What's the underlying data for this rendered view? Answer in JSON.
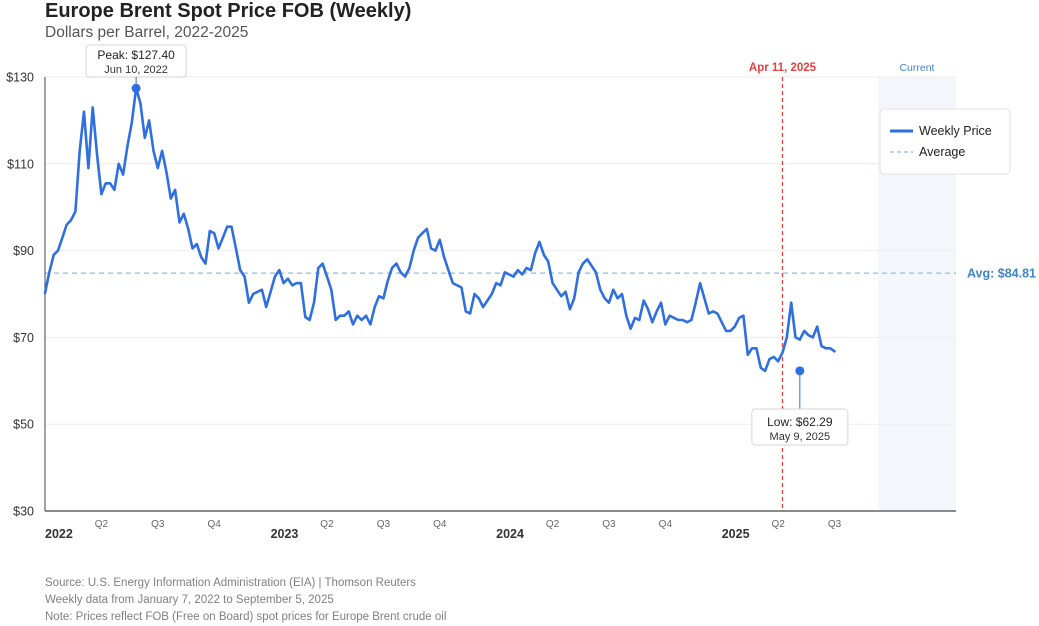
{
  "title": "Europe Brent Spot Price FOB (Weekly)",
  "subtitle": "Dollars per Barrel, 2022-2025",
  "colors": {
    "line": "#2f6fe0",
    "average": "#8fbde0",
    "average_label": "#3f86c8",
    "event": "#e04040",
    "current_band": "#f3f7fc",
    "current_label": "#3f86c8",
    "grid": "#eeeeee",
    "axis": "#444444"
  },
  "chart_data": {
    "type": "line",
    "title": "Europe Brent Spot Price FOB (Weekly)",
    "subtitle": "Dollars per Barrel, 2022-2025",
    "xlabel": "",
    "ylabel": "",
    "y_ticks": [
      "$130",
      "$110",
      "$90",
      "$70",
      "$50",
      "$30"
    ],
    "y_tick_values": [
      130,
      110,
      90,
      70,
      50,
      30
    ],
    "ylim": [
      30,
      130
    ],
    "x_range_weeks": [
      0,
      210
    ],
    "grid": true,
    "x_year_labels": [
      {
        "label": "2022",
        "week": 0
      },
      {
        "label": "2023",
        "week": 52
      },
      {
        "label": "2024",
        "week": 104
      },
      {
        "label": "2025",
        "week": 156
      }
    ],
    "x_quarter_labels": [
      {
        "label": "Q2",
        "week": 13
      },
      {
        "label": "Q3",
        "week": 26
      },
      {
        "label": "Q4",
        "week": 39
      },
      {
        "label": "Q2",
        "week": 65
      },
      {
        "label": "Q3",
        "week": 78
      },
      {
        "label": "Q4",
        "week": 91
      },
      {
        "label": "Q2",
        "week": 117
      },
      {
        "label": "Q3",
        "week": 130
      },
      {
        "label": "Q4",
        "week": 143
      },
      {
        "label": "Q2",
        "week": 169
      },
      {
        "label": "Q3",
        "week": 182
      }
    ],
    "series": [
      {
        "name": "Weekly Price",
        "start_date": "January 7, 2022",
        "interval": "weekly",
        "values": [
          80.2,
          85,
          89,
          90,
          93,
          96,
          97,
          99,
          113,
          122,
          109,
          123,
          112,
          103,
          105.5,
          105.5,
          104,
          110,
          107.5,
          114,
          119.5,
          127.4,
          124,
          116,
          120,
          113,
          109,
          113,
          108,
          102,
          104,
          96.5,
          98.5,
          95,
          90.5,
          91.5,
          88.5,
          87,
          94.5,
          94,
          90.5,
          93,
          95.5,
          95.5,
          90.5,
          85.5,
          84,
          78,
          80,
          80.5,
          81,
          77,
          80.5,
          84,
          85.5,
          82.5,
          83.5,
          82,
          82.5,
          82.5,
          74.7,
          74,
          78,
          86,
          87,
          84,
          81,
          74,
          75,
          75,
          76,
          73,
          75,
          74,
          75,
          73,
          77,
          79.5,
          79,
          83,
          86,
          87,
          85,
          84,
          86,
          90,
          93,
          94,
          95,
          90.5,
          90,
          92.5,
          88.5,
          85.5,
          82.5,
          82,
          81.5,
          76,
          75.5,
          80,
          79,
          77,
          78.5,
          80,
          82.5,
          82,
          85,
          84.5,
          84,
          85.5,
          84.5,
          86,
          85.5,
          89.5,
          92,
          89,
          87.5,
          82.5,
          81,
          79.5,
          80.5,
          76.5,
          79,
          85,
          87,
          88,
          86.5,
          85,
          81,
          79,
          78,
          81,
          79,
          80,
          75,
          72,
          74.5,
          74,
          78.5,
          76.5,
          73.5,
          76,
          78,
          73,
          75,
          74.5,
          74,
          74,
          73.5,
          74,
          78,
          82.5,
          79,
          75.5,
          76,
          75.5,
          73.5,
          71.5,
          71.5,
          72.5,
          74.5,
          75,
          66,
          67.5,
          67.5,
          63,
          62.29,
          65,
          65.5,
          64.5,
          66.5,
          70,
          78,
          70,
          69.5,
          71.5,
          70.5,
          70,
          72.5,
          68,
          67.5,
          67.5,
          66.8
        ]
      }
    ],
    "average": {
      "name": "Average",
      "value": 84.81,
      "label": "Avg: $84.81"
    },
    "peak": {
      "value": 127.4,
      "week": 21,
      "price_label": "Peak: $127.40",
      "date_label": "Jun 10, 2022"
    },
    "low": {
      "value": 62.29,
      "week": 174,
      "price_label": "Low: $62.29",
      "date_label": "May 9, 2025"
    },
    "event_line": {
      "label": "Apr 11, 2025",
      "week": 170
    },
    "current_band": {
      "label": "Current",
      "start_week": 192,
      "end_week": 210
    },
    "legend": {
      "position": "top-right",
      "entries": [
        {
          "label": "Weekly Price",
          "style": "solid"
        },
        {
          "label": "Average",
          "style": "dashed"
        }
      ]
    }
  },
  "footer": {
    "source": "Source: U.S. Energy Information Administration (EIA) | Thomson Reuters",
    "period": "Weekly data from January 7, 2022 to September 5, 2025",
    "note": "Note: Prices reflect FOB (Free on Board) spot prices for Europe Brent crude oil"
  }
}
